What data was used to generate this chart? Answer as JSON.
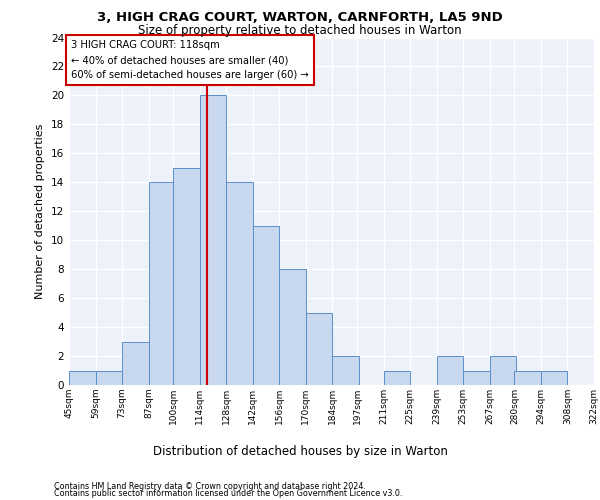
{
  "title_line1": "3, HIGH CRAG COURT, WARTON, CARNFORTH, LA5 9ND",
  "title_line2": "Size of property relative to detached houses in Warton",
  "xlabel": "Distribution of detached houses by size in Warton",
  "ylabel": "Number of detached properties",
  "annotation_line1": "3 HIGH CRAG COURT: 118sqm",
  "annotation_line2": "← 40% of detached houses are smaller (40)",
  "annotation_line3": "60% of semi-detached houses are larger (60) →",
  "property_size": 118,
  "bin_edges": [
    45,
    59,
    73,
    87,
    100,
    114,
    128,
    142,
    156,
    170,
    184,
    197,
    211,
    225,
    239,
    253,
    267,
    280,
    294,
    308,
    322
  ],
  "bin_labels": [
    "45sqm",
    "59sqm",
    "73sqm",
    "87sqm",
    "100sqm",
    "114sqm",
    "128sqm",
    "142sqm",
    "156sqm",
    "170sqm",
    "184sqm",
    "197sqm",
    "211sqm",
    "225sqm",
    "239sqm",
    "253sqm",
    "267sqm",
    "280sqm",
    "294sqm",
    "308sqm",
    "322sqm"
  ],
  "counts": [
    1,
    1,
    3,
    14,
    15,
    20,
    14,
    11,
    8,
    5,
    2,
    0,
    1,
    0,
    2,
    1,
    2,
    1,
    1,
    0
  ],
  "bar_color": "#c8d9ef",
  "bar_edge_color": "#5b8fc9",
  "vline_color": "#cc0000",
  "vline_x": 118,
  "ylim": [
    0,
    24
  ],
  "yticks": [
    0,
    2,
    4,
    6,
    8,
    10,
    12,
    14,
    16,
    18,
    20,
    22,
    24
  ],
  "background_color": "#edf2fa",
  "grid_color": "#ffffff",
  "annotation_box_bg": "#ffffff",
  "annotation_box_edge": "#cc0000",
  "footer_line1": "Contains HM Land Registry data © Crown copyright and database right 2024.",
  "footer_line2": "Contains public sector information licensed under the Open Government Licence v3.0."
}
